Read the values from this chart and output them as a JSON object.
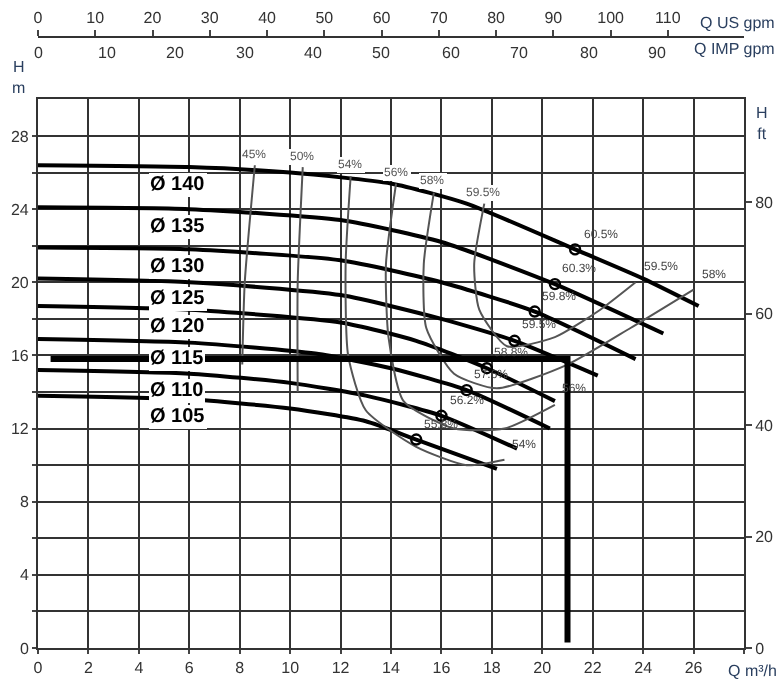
{
  "chart_data": {
    "type": "line",
    "xlabel": "Q m³/h",
    "ylabel": "H\nm",
    "y2label": "H\nft",
    "x2label": "Q US gpm",
    "xlim": [
      0,
      28
    ],
    "xticks": [
      0,
      2,
      4,
      6,
      8,
      10,
      12,
      14,
      16,
      18,
      20,
      22,
      24,
      26,
      {
        "value": 28,
        "label": null
      }
    ],
    "ylim": [
      0,
      30
    ],
    "yticks": [
      0,
      {
        "value": 2,
        "label": null
      },
      4,
      {
        "value": 6,
        "label": null
      },
      8,
      {
        "value": 10,
        "label": null
      },
      12,
      {
        "value": 14,
        "label": null
      },
      16,
      {
        "value": 18,
        "label": null
      },
      20,
      {
        "value": 22,
        "label": null
      },
      24,
      {
        "value": 26,
        "label": null
      },
      28
    ],
    "y2lim": [
      0,
      98.4
    ],
    "y2ticks": [
      0,
      20,
      40,
      60,
      80
    ],
    "x2lim": [
      0,
      123.3
    ],
    "x2ticks": [
      0,
      10,
      20,
      30,
      40,
      50,
      60,
      70,
      80,
      90,
      100,
      110
    ],
    "grid": true,
    "line_style": "solid",
    "series": [
      {
        "name": "Ø 140",
        "color": "#000000",
        "x": [
          0,
          6,
          10,
          14,
          17,
          21.3,
          24,
          26.2
        ],
        "values": [
          26.4,
          26.3,
          26.0,
          25.4,
          24.3,
          21.8,
          20.2,
          18.7
        ]
      },
      {
        "name": "Ø 135",
        "color": "#000000",
        "x": [
          0,
          6,
          12,
          16,
          20.5,
          24.8
        ],
        "values": [
          24.1,
          24.0,
          23.4,
          22.2,
          19.9,
          17.2
        ]
      },
      {
        "name": "Ø 130",
        "color": "#000000",
        "x": [
          0,
          6,
          12,
          16,
          19.7,
          23.7
        ],
        "values": [
          21.9,
          21.8,
          21.2,
          20.0,
          18.4,
          15.8
        ]
      },
      {
        "name": "Ø 125",
        "color": "#000000",
        "x": [
          0,
          6,
          12,
          16,
          18.9,
          22.2
        ],
        "values": [
          20.2,
          20.0,
          19.3,
          18.0,
          16.8,
          14.9
        ]
      },
      {
        "name": "Ø 120",
        "color": "#000000",
        "x": [
          0,
          6,
          12,
          15,
          17.8,
          20.5
        ],
        "values": [
          18.7,
          18.5,
          17.8,
          16.8,
          15.3,
          13.5
        ]
      },
      {
        "name": "Ø 115",
        "color": "#000000",
        "x": [
          0,
          6,
          11,
          14,
          17.0,
          20.3
        ],
        "values": [
          16.9,
          16.7,
          16.1,
          15.3,
          14.1,
          12.0
        ]
      },
      {
        "name": "Ø 110",
        "color": "#000000",
        "x": [
          0,
          6,
          10,
          13,
          16.0,
          19.0
        ],
        "values": [
          15.2,
          15.0,
          14.5,
          13.8,
          12.7,
          10.9
        ]
      },
      {
        "name": "Ø 105",
        "color": "#000000",
        "x": [
          0,
          6,
          10,
          13,
          15.0,
          18.2
        ],
        "values": [
          13.8,
          13.6,
          13.1,
          12.4,
          11.4,
          9.8
        ]
      },
      {
        "name": "45%",
        "color": "#555555",
        "x": [
          8.6,
          8.2,
          8.1
        ],
        "values": [
          26.4,
          20,
          15.5
        ]
      },
      {
        "name": "50%",
        "color": "#555555",
        "x": [
          10.5,
          10.3,
          10.3
        ],
        "values": [
          26.3,
          20,
          14
        ]
      },
      {
        "name": "54%",
        "color": "#555555",
        "x": [
          12.4,
          12.2,
          12.3,
          13,
          15,
          17,
          18.5
        ],
        "values": [
          25.8,
          21,
          16,
          13,
          11,
          10,
          10.3
        ]
      },
      {
        "name": "56%",
        "color": "#555555",
        "x": [
          14.2,
          13.8,
          13.9,
          14.5,
          16.5,
          18.5,
          20.5
        ],
        "values": [
          25.4,
          21,
          17,
          13.5,
          12.0,
          12.0,
          13.3
        ]
      },
      {
        "name": "58%",
        "color": "#555555",
        "x": [
          15.7,
          15.3,
          15.4,
          16.5,
          18.2,
          21,
          23.5,
          26.0
        ],
        "values": [
          24.9,
          21,
          17.5,
          15,
          14.2,
          15.5,
          17.5,
          19.6
        ]
      },
      {
        "name": "59.5%",
        "color": "#555555",
        "x": [
          17.7,
          17.3,
          17.5,
          18.6,
          20.5,
          22.3,
          23.7
        ],
        "values": [
          24.3,
          21,
          18.5,
          16.5,
          17,
          18.5,
          20.0
        ]
      },
      {
        "type": "scatter",
        "marker": "circle",
        "color": "#000000",
        "x": [
          21.3,
          20.5,
          19.7,
          18.9,
          17.8,
          17.0,
          16.0,
          15.0
        ],
        "values": [
          21.8,
          19.9,
          18.4,
          16.8,
          15.3,
          14.1,
          12.7,
          11.4
        ]
      },
      {
        "color": "#000000",
        "x": [
          0.5,
          21,
          21
        ],
        "values": [
          15.8,
          15.8,
          0.3
        ]
      }
    ],
    "annotations": [
      {
        "text": "60.5%",
        "x": 21.3,
        "y": 21.8
      },
      {
        "text": "60.3%",
        "x": 20.5,
        "y": 19.9
      },
      {
        "text": "59.8%",
        "x": 19.7,
        "y": 18.4
      },
      {
        "text": "59.5%",
        "x": 18.9,
        "y": 16.8
      },
      {
        "text": "58.8%",
        "x": 17.8,
        "y": 15.3
      },
      {
        "text": "57.6%",
        "x": 17.0,
        "y": 14.1
      },
      {
        "text": "56.2%",
        "x": 16.0,
        "y": 12.7
      },
      {
        "text": "55.8%",
        "x": 15.0,
        "y": 11.4
      },
      {
        "text": "59.5%",
        "x": 23.7,
        "y": 20.0
      },
      {
        "text": "58%",
        "x": 26.0,
        "y": 19.6
      },
      {
        "text": "56%",
        "x": 20.5,
        "y": 13.3
      },
      {
        "text": "54%",
        "x": 18.5,
        "y": 10.3
      },
      "Q IMP gpm",
      "0",
      "10",
      "20",
      "30",
      "40",
      "50",
      "60",
      "70",
      "80",
      "90"
    ]
  }
}
